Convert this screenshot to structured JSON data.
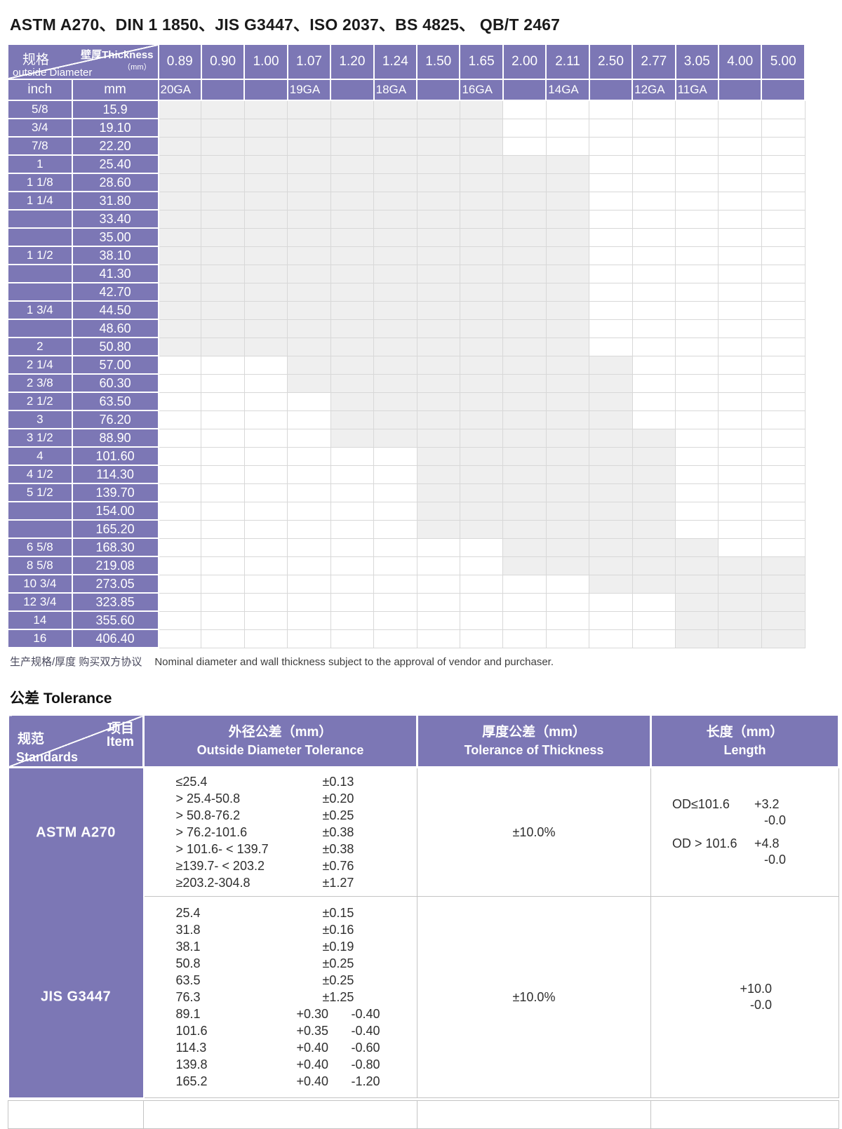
{
  "colors": {
    "purple": "#7c77b5",
    "shaded_cell": "#efefef",
    "matrix_grid": "#d8d8d8",
    "tolerance_border": "#c4c4c4",
    "header_text": "#ffffff",
    "text_dark": "#2f2f2f"
  },
  "title": "ASTM A270、DIN 1 1850、JIS G3447、ISO 2037、BS 4825、 QB/T 2467",
  "size_table": {
    "corner": {
      "top_label": "壁厚Thickness",
      "unit": "（mm）",
      "od_zh": "规格",
      "od_en": "outside Diameter"
    },
    "unit_headers": {
      "inch": "inch",
      "mm": "mm"
    },
    "col_headers": [
      "0.89",
      "0.90",
      "1.00",
      "1.07",
      "1.20",
      "1.24",
      "1.50",
      "1.65",
      "2.00",
      "2.11",
      "2.50",
      "2.77",
      "3.05",
      "4.00",
      "5.00"
    ],
    "gauge_row": [
      "20GA",
      "",
      "",
      "19GA",
      "",
      "18GA",
      "",
      "16GA",
      "",
      "14GA",
      "",
      "12GA",
      "11GA",
      "",
      ""
    ],
    "rows": [
      {
        "inch": "5/8",
        "mm": "15.9",
        "shaded_from": "0.89",
        "shaded_to": "1.65"
      },
      {
        "inch": "3/4",
        "mm": "19.10",
        "shaded_from": "0.89",
        "shaded_to": "1.65"
      },
      {
        "inch": "7/8",
        "mm": "22.20",
        "shaded_from": "0.89",
        "shaded_to": "1.65"
      },
      {
        "inch": "1",
        "mm": "25.40",
        "shaded_from": "0.89",
        "shaded_to": "2.11"
      },
      {
        "inch": "1 1/8",
        "mm": "28.60",
        "shaded_from": "0.89",
        "shaded_to": "2.11"
      },
      {
        "inch": "1 1/4",
        "mm": "31.80",
        "shaded_from": "0.89",
        "shaded_to": "2.11"
      },
      {
        "inch": "",
        "mm": "33.40",
        "shaded_from": "0.89",
        "shaded_to": "2.11"
      },
      {
        "inch": "",
        "mm": "35.00",
        "shaded_from": "0.89",
        "shaded_to": "2.11"
      },
      {
        "inch": "1 1/2",
        "mm": "38.10",
        "shaded_from": "0.89",
        "shaded_to": "2.11"
      },
      {
        "inch": "",
        "mm": "41.30",
        "shaded_from": "0.89",
        "shaded_to": "2.11"
      },
      {
        "inch": "",
        "mm": "42.70",
        "shaded_from": "0.89",
        "shaded_to": "2.11"
      },
      {
        "inch": "1 3/4",
        "mm": "44.50",
        "shaded_from": "0.89",
        "shaded_to": "2.11"
      },
      {
        "inch": "",
        "mm": "48.60",
        "shaded_from": "0.89",
        "shaded_to": "2.11"
      },
      {
        "inch": "2",
        "mm": "50.80",
        "shaded_from": "0.89",
        "shaded_to": "2.11"
      },
      {
        "inch": "2 1/4",
        "mm": "57.00",
        "shaded_from": "1.07",
        "shaded_to": "2.50"
      },
      {
        "inch": "2 3/8",
        "mm": "60.30",
        "shaded_from": "1.07",
        "shaded_to": "2.50"
      },
      {
        "inch": "2 1/2",
        "mm": "63.50",
        "shaded_from": "1.20",
        "shaded_to": "2.50"
      },
      {
        "inch": "3",
        "mm": "76.20",
        "shaded_from": "1.20",
        "shaded_to": "2.50"
      },
      {
        "inch": "3 1/2",
        "mm": "88.90",
        "shaded_from": "1.20",
        "shaded_to": "2.77"
      },
      {
        "inch": "4",
        "mm": "101.60",
        "shaded_from": "1.50",
        "shaded_to": "2.77"
      },
      {
        "inch": "4 1/2",
        "mm": "114.30",
        "shaded_from": "1.50",
        "shaded_to": "2.77"
      },
      {
        "inch": "5 1/2",
        "mm": "139.70",
        "shaded_from": "1.50",
        "shaded_to": "2.77"
      },
      {
        "inch": "",
        "mm": "154.00",
        "shaded_from": "1.50",
        "shaded_to": "2.77"
      },
      {
        "inch": "",
        "mm": "165.20",
        "shaded_from": "1.50",
        "shaded_to": "2.77"
      },
      {
        "inch": "6 5/8",
        "mm": "168.30",
        "shaded_from": "2.00",
        "shaded_to": "3.05"
      },
      {
        "inch": "8 5/8",
        "mm": "219.08",
        "shaded_from": "2.00",
        "shaded_to": "5.00"
      },
      {
        "inch": "10 3/4",
        "mm": "273.05",
        "shaded_from": "2.50",
        "shaded_to": "5.00"
      },
      {
        "inch": "12 3/4",
        "mm": "323.85",
        "shaded_from": "3.05",
        "shaded_to": "5.00"
      },
      {
        "inch": "14",
        "mm": "355.60",
        "shaded_from": "3.05",
        "shaded_to": "5.00"
      },
      {
        "inch": "16",
        "mm": "406.40",
        "shaded_from": "3.05",
        "shaded_to": "5.00"
      }
    ]
  },
  "footnote": {
    "zh": "生产规格/厚度 购买双方协议",
    "en": "Nominal diameter and wall thickness subject  to the approval of vendor and purchaser."
  },
  "tolerance": {
    "heading": "公差 Tolerance",
    "corner": {
      "item_zh": "项目",
      "item_en": "Item",
      "std_zh": "规范",
      "std_en": "Standards"
    },
    "columns": [
      {
        "zh": "外径公差（mm）",
        "en": "Outside Diameter   Tolerance"
      },
      {
        "zh": "厚度公差（mm）",
        "en": "Tolerance of  Thickness"
      },
      {
        "zh": "长度（mm）",
        "en": "Length"
      }
    ],
    "rows": [
      {
        "standard": "ASTM A270",
        "od": [
          {
            "range": "≤25.4",
            "tol": "±0.13"
          },
          {
            "range": "> 25.4-50.8",
            "tol": "±0.20"
          },
          {
            "range": "> 50.8-76.2",
            "tol": "±0.25"
          },
          {
            "range": "> 76.2-101.6",
            "tol": "±0.38"
          },
          {
            "range": "> 101.6- < 139.7",
            "tol": "±0.38"
          },
          {
            "range": "≥139.7- < 203.2",
            "tol": "±0.76"
          },
          {
            "range": "≥203.2-304.8",
            "tol": "±1.27"
          }
        ],
        "thickness": "±10.0%",
        "length": [
          {
            "cond": "OD≤101.6",
            "plus": "+3.2",
            "minus": "-0.0"
          },
          {
            "cond": "OD > 101.6",
            "plus": "+4.8",
            "minus": "-0.0"
          }
        ]
      },
      {
        "standard": "JIS G3447",
        "od": [
          {
            "range": "25.4",
            "tol": "±0.15"
          },
          {
            "range": "31.8",
            "tol": "±0.16"
          },
          {
            "range": "38.1",
            "tol": "±0.19"
          },
          {
            "range": "50.8",
            "tol": "±0.25"
          },
          {
            "range": "63.5",
            "tol": "±0.25"
          },
          {
            "range": "76.3",
            "tol": "±1.25"
          },
          {
            "range": "89.1",
            "plus": "+0.30",
            "minus": "-0.40"
          },
          {
            "range": "101.6",
            "plus": "+0.35",
            "minus": "-0.40"
          },
          {
            "range": "114.3",
            "plus": "+0.40",
            "minus": "-0.60"
          },
          {
            "range": "139.8",
            "plus": "+0.40",
            "minus": "-0.80"
          },
          {
            "range": "165.2",
            "plus": "+0.40",
            "minus": "-1.20"
          }
        ],
        "thickness": "±10.0%",
        "length": [
          {
            "cond": "",
            "plus": "+10.0",
            "minus": "-0.0"
          }
        ]
      }
    ]
  }
}
